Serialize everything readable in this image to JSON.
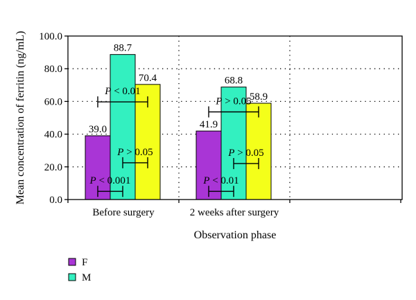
{
  "chart_data": {
    "type": "bar",
    "categories": [
      "Before surgery",
      "2 weeks after surgery"
    ],
    "series": [
      {
        "name": "F",
        "values": [
          39.0,
          41.9
        ],
        "color": "#a935d6"
      },
      {
        "name": "M",
        "values": [
          88.7,
          68.8
        ],
        "color": "#33f0c0"
      },
      {
        "name": "",
        "values": [
          70.4,
          58.9
        ],
        "color": "#f4ff1a"
      }
    ],
    "value_labels": [
      [
        "39.0",
        "88.7",
        "70.4"
      ],
      [
        "41.9",
        "68.8",
        "58.9"
      ]
    ],
    "comparisons": [
      [
        {
          "text": "P < 0.01",
          "y": 59.7,
          "from": 0,
          "to": 2
        },
        {
          "text": "P > 0.05",
          "y": 22.5,
          "from": 1,
          "to": 2
        },
        {
          "text": "P < 0.001",
          "y": 5.0,
          "from": 0,
          "to": 1
        }
      ],
      [
        {
          "text": "P > 0.05",
          "y": 53.6,
          "from": 0,
          "to": 2
        },
        {
          "text": "P > 0.05",
          "y": 22.0,
          "from": 1,
          "to": 2
        },
        {
          "text": "P < 0.01",
          "y": 5.0,
          "from": 0,
          "to": 1
        }
      ]
    ],
    "xlabel": "Observation phase",
    "ylabel": "Mean concentration of ferritin (ng/mL)",
    "ylim": [
      0,
      100
    ],
    "yticks": [
      "0.0",
      "20.0",
      "40.0",
      "60.0",
      "80.0",
      "100.0"
    ],
    "grid": true,
    "legend_position": "bottom-left"
  }
}
